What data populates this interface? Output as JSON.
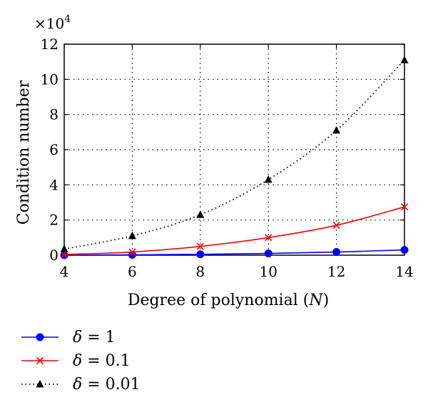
{
  "chart_data": {
    "type": "line",
    "x": [
      4,
      6,
      8,
      10,
      12,
      14
    ],
    "xlabel": "Degree of polynomial (N)",
    "ylabel": "Condition number",
    "multiplier_label": "×10",
    "multiplier_exponent": "4",
    "xlim": [
      4,
      14
    ],
    "ylim": [
      0,
      12
    ],
    "x_ticks": [
      "4",
      "6",
      "8",
      "10",
      "12",
      "14"
    ],
    "y_ticks": [
      "0",
      "2",
      "4",
      "6",
      "8",
      "10",
      "12"
    ],
    "grid": true,
    "legend_position": "bottom-left, below plot",
    "series": [
      {
        "name": "δ = 1",
        "values": [
          0.0,
          0.02,
          0.05,
          0.1,
          0.18,
          0.3
        ],
        "color": "#0000ff",
        "line_style": "solid",
        "marker": "circle"
      },
      {
        "name": "δ = 0.1",
        "values": [
          0.04,
          0.18,
          0.5,
          1.0,
          1.7,
          2.75
        ],
        "color": "#ff0000",
        "line_style": "solid",
        "marker": "x"
      },
      {
        "name": "δ = 0.01",
        "values": [
          0.35,
          1.1,
          2.3,
          4.3,
          7.1,
          11.1
        ],
        "color": "#000000",
        "line_style": "dotted",
        "marker": "triangle"
      }
    ]
  }
}
